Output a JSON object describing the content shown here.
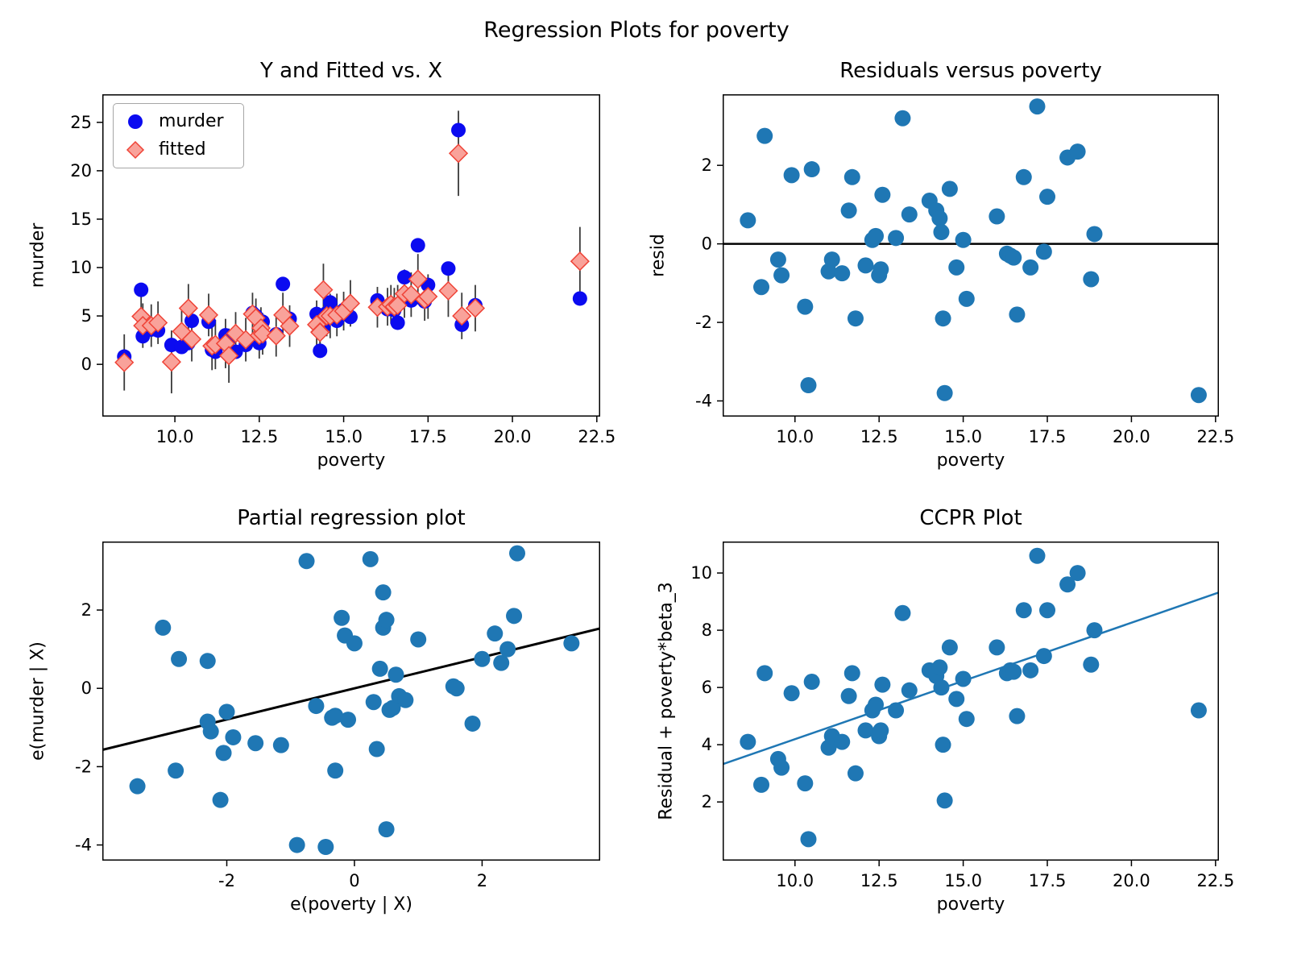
{
  "figure": {
    "suptitle": "Regression Plots for poverty",
    "background": "#ffffff"
  },
  "colors": {
    "murder_blue": "#0b0bf0",
    "fitted_fill": "#f9a29a",
    "fitted_edge": "#ef4337",
    "errorbar_gray": "#3a3a3a",
    "scatter_blue": "#1f77b4",
    "line_black": "#000000"
  },
  "chart_data": [
    {
      "id": "y_fitted_vs_x",
      "type": "scatter",
      "title": "Y and Fitted vs. X",
      "xlabel": "poverty",
      "ylabel": "murder",
      "xlim": [
        7.85,
        22.6
      ],
      "ylim": [
        -5.4,
        27.9
      ],
      "xticks": [
        10,
        12.5,
        15,
        17.5,
        20,
        22.5
      ],
      "xtick_labels": [
        "10.0",
        "12.5",
        "15.0",
        "17.5",
        "20.0",
        "22.5"
      ],
      "yticks": [
        0,
        5,
        10,
        15,
        20,
        25
      ],
      "ytick_labels": [
        "0",
        "5",
        "10",
        "15",
        "20",
        "25"
      ],
      "murder_color": "#0b0bf0",
      "fitted_fill": "#f9a29a",
      "fitted_edge": "#ef4337",
      "errorbar_color": "#3a3a3a",
      "legend": {
        "items": [
          {
            "label": "murder",
            "marker": "circle",
            "color": "#0b0bf0"
          },
          {
            "label": "fitted",
            "marker": "diamond",
            "fill": "#f9a29a",
            "edge": "#ef4337"
          }
        ]
      },
      "point_format": [
        "poverty",
        "murder",
        "fitted",
        "ci_low",
        "ci_high"
      ],
      "points": [
        [
          8.5,
          0.8,
          0.2,
          -2.7,
          3.1
        ],
        [
          9.0,
          7.7,
          4.95,
          2.4,
          7.5
        ],
        [
          9.05,
          2.9,
          4.0,
          1.7,
          6.3
        ],
        [
          9.3,
          3.6,
          4.0,
          1.8,
          6.2
        ],
        [
          9.5,
          3.5,
          4.3,
          2.1,
          6.5
        ],
        [
          9.9,
          2.0,
          0.25,
          -3.0,
          3.5
        ],
        [
          10.2,
          1.8,
          3.4,
          1.2,
          5.6
        ],
        [
          10.4,
          2.2,
          5.8,
          3.3,
          8.3
        ],
        [
          10.5,
          4.5,
          2.6,
          0.3,
          4.9
        ],
        [
          11.0,
          4.4,
          5.1,
          2.9,
          7.3
        ],
        [
          11.1,
          1.5,
          1.9,
          -0.6,
          4.4
        ],
        [
          11.2,
          1.3,
          2.05,
          -0.5,
          4.6
        ],
        [
          11.5,
          3.0,
          2.15,
          -0.4,
          4.7
        ],
        [
          11.6,
          2.6,
          0.9,
          -1.9,
          3.7
        ],
        [
          11.8,
          1.3,
          3.2,
          1.0,
          5.4
        ],
        [
          12.1,
          2.0,
          2.55,
          0.3,
          4.8
        ],
        [
          12.3,
          5.3,
          5.2,
          3.0,
          7.4
        ],
        [
          12.4,
          5.0,
          4.8,
          2.8,
          6.8
        ],
        [
          12.5,
          2.2,
          3.0,
          0.6,
          5.4
        ],
        [
          12.55,
          3.1,
          3.75,
          1.6,
          5.9
        ],
        [
          12.6,
          4.4,
          3.15,
          1.0,
          5.3
        ],
        [
          13.0,
          3.1,
          2.95,
          0.8,
          5.1
        ],
        [
          13.2,
          8.3,
          5.1,
          2.8,
          7.4
        ],
        [
          13.4,
          4.7,
          3.95,
          1.8,
          6.1
        ],
        [
          14.2,
          5.2,
          4.1,
          1.6,
          6.6
        ],
        [
          14.3,
          4.0,
          3.35,
          1.0,
          5.7
        ],
        [
          14.3,
          1.4,
          3.3,
          0.9,
          5.7
        ],
        [
          14.4,
          3.9,
          7.7,
          5.0,
          10.4
        ],
        [
          14.5,
          5.3,
          5.0,
          2.9,
          7.1
        ],
        [
          14.6,
          6.4,
          5.0,
          2.7,
          7.3
        ],
        [
          14.8,
          4.5,
          5.1,
          2.9,
          7.3
        ],
        [
          15.0,
          5.6,
          5.5,
          3.5,
          7.5
        ],
        [
          15.2,
          4.9,
          6.3,
          3.9,
          8.7
        ],
        [
          16.0,
          6.6,
          5.9,
          3.8,
          8.0
        ],
        [
          16.3,
          5.7,
          5.95,
          4.0,
          7.9
        ],
        [
          16.4,
          5.9,
          6.2,
          4.2,
          8.2
        ],
        [
          16.5,
          5.6,
          5.95,
          4.0,
          7.9
        ],
        [
          16.6,
          4.3,
          6.1,
          4.0,
          8.2
        ],
        [
          16.8,
          9.0,
          7.3,
          4.8,
          9.8
        ],
        [
          17.0,
          6.6,
          7.2,
          4.9,
          9.5
        ],
        [
          17.2,
          12.3,
          8.8,
          6.2,
          11.4
        ],
        [
          17.4,
          6.5,
          6.7,
          4.5,
          8.9
        ],
        [
          17.5,
          8.2,
          7.0,
          4.7,
          9.3
        ],
        [
          18.1,
          9.9,
          7.6,
          4.9,
          10.3
        ],
        [
          18.4,
          24.2,
          21.8,
          17.4,
          26.2
        ],
        [
          18.5,
          4.1,
          5.0,
          2.6,
          7.4
        ],
        [
          18.9,
          6.1,
          5.8,
          3.4,
          8.2
        ],
        [
          22.0,
          6.8,
          10.65,
          7.1,
          14.2
        ]
      ]
    },
    {
      "id": "residuals_vs_poverty",
      "type": "scatter",
      "title": "Residuals versus poverty",
      "xlabel": "poverty",
      "ylabel": "resid",
      "xlim": [
        7.85,
        22.6
      ],
      "ylim": [
        -4.4,
        3.81
      ],
      "xticks": [
        10,
        12.5,
        15,
        17.5,
        20,
        22.5
      ],
      "xtick_labels": [
        "10.0",
        "12.5",
        "15.0",
        "17.5",
        "20.0",
        "22.5"
      ],
      "yticks": [
        -4,
        -2,
        0,
        2
      ],
      "ytick_labels": [
        "-4",
        "-2",
        "0",
        "2"
      ],
      "point_color": "#1f77b4",
      "zero_line": 0,
      "point_format": [
        "poverty",
        "resid"
      ],
      "points": [
        [
          8.6,
          0.6
        ],
        [
          9.0,
          -1.1
        ],
        [
          9.1,
          2.75
        ],
        [
          9.5,
          -0.4
        ],
        [
          9.6,
          -0.8
        ],
        [
          9.9,
          1.75
        ],
        [
          10.3,
          -1.6
        ],
        [
          10.4,
          -3.6
        ],
        [
          10.5,
          1.9
        ],
        [
          11.0,
          -0.7
        ],
        [
          11.1,
          -0.4
        ],
        [
          11.4,
          -0.75
        ],
        [
          11.6,
          0.85
        ],
        [
          11.7,
          1.7
        ],
        [
          11.8,
          -1.9
        ],
        [
          12.1,
          -0.55
        ],
        [
          12.3,
          0.1
        ],
        [
          12.4,
          0.2
        ],
        [
          12.5,
          -0.8
        ],
        [
          12.55,
          -0.65
        ],
        [
          12.6,
          1.25
        ],
        [
          13.0,
          0.15
        ],
        [
          13.2,
          3.2
        ],
        [
          13.4,
          0.75
        ],
        [
          14.0,
          1.1
        ],
        [
          14.2,
          0.85
        ],
        [
          14.3,
          0.65
        ],
        [
          14.35,
          0.3
        ],
        [
          14.4,
          -1.9
        ],
        [
          14.45,
          -3.8
        ],
        [
          14.6,
          1.4
        ],
        [
          14.8,
          -0.6
        ],
        [
          15.0,
          0.1
        ],
        [
          15.1,
          -1.4
        ],
        [
          16.0,
          0.7
        ],
        [
          16.3,
          -0.25
        ],
        [
          16.4,
          -0.3
        ],
        [
          16.5,
          -0.35
        ],
        [
          16.6,
          -1.8
        ],
        [
          16.8,
          1.7
        ],
        [
          17.0,
          -0.6
        ],
        [
          17.2,
          3.5
        ],
        [
          17.4,
          -0.2
        ],
        [
          17.5,
          1.2
        ],
        [
          18.1,
          2.2
        ],
        [
          18.4,
          2.35
        ],
        [
          18.8,
          -0.9
        ],
        [
          18.9,
          0.25
        ],
        [
          22.0,
          -3.85
        ]
      ]
    },
    {
      "id": "partial_regression",
      "type": "scatter",
      "title": "Partial regression plot",
      "xlabel": "e(poverty | X)",
      "ylabel": "e(murder | X)",
      "xlim": [
        -3.95,
        3.85
      ],
      "ylim": [
        -4.4,
        3.75
      ],
      "xticks": [
        -2,
        0,
        2
      ],
      "xtick_labels": [
        "-2",
        "0",
        "2"
      ],
      "yticks": [
        -4,
        -2,
        0,
        2
      ],
      "ytick_labels": [
        "-4",
        "-2",
        "0",
        "2"
      ],
      "point_color": "#1f77b4",
      "fit_line": {
        "x1": -3.95,
        "y1": -1.57,
        "x2": 3.85,
        "y2": 1.53,
        "color": "#000000",
        "width": 3
      },
      "point_format": [
        "e_poverty",
        "e_murder"
      ],
      "points": [
        [
          -3.4,
          -2.5
        ],
        [
          -3.0,
          1.55
        ],
        [
          -2.8,
          -2.1
        ],
        [
          -2.75,
          0.75
        ],
        [
          -2.3,
          0.7
        ],
        [
          -2.3,
          -0.85
        ],
        [
          -2.25,
          -1.1
        ],
        [
          -2.1,
          -2.85
        ],
        [
          -2.05,
          -1.65
        ],
        [
          -2.0,
          -0.6
        ],
        [
          -1.9,
          -1.25
        ],
        [
          -1.55,
          -1.4
        ],
        [
          -1.15,
          -1.45
        ],
        [
          -0.9,
          -4.0
        ],
        [
          -0.75,
          3.25
        ],
        [
          -0.6,
          -0.45
        ],
        [
          -0.45,
          -4.05
        ],
        [
          -0.35,
          -0.75
        ],
        [
          -0.3,
          -2.1
        ],
        [
          -0.3,
          -0.7
        ],
        [
          -0.2,
          1.8
        ],
        [
          -0.15,
          1.35
        ],
        [
          -0.1,
          -0.8
        ],
        [
          0.0,
          1.15
        ],
        [
          0.25,
          3.3
        ],
        [
          0.3,
          -0.35
        ],
        [
          0.35,
          -1.55
        ],
        [
          0.4,
          0.5
        ],
        [
          0.45,
          2.45
        ],
        [
          0.45,
          1.55
        ],
        [
          0.5,
          1.75
        ],
        [
          0.5,
          -3.6
        ],
        [
          0.55,
          -0.55
        ],
        [
          0.6,
          -0.5
        ],
        [
          0.65,
          0.35
        ],
        [
          0.7,
          -0.2
        ],
        [
          0.8,
          -0.3
        ],
        [
          1.0,
          1.25
        ],
        [
          1.55,
          0.05
        ],
        [
          1.6,
          0.0
        ],
        [
          1.85,
          -0.9
        ],
        [
          2.0,
          0.75
        ],
        [
          2.2,
          1.4
        ],
        [
          2.3,
          0.65
        ],
        [
          2.4,
          1.0
        ],
        [
          2.5,
          1.85
        ],
        [
          2.55,
          3.45
        ],
        [
          3.4,
          1.15
        ]
      ]
    },
    {
      "id": "ccpr",
      "type": "scatter",
      "title": "CCPR Plot",
      "xlabel": "poverty",
      "ylabel": "Residual + poverty*beta_3",
      "xlim": [
        7.85,
        22.6
      ],
      "ylim": [
        -0.05,
        11.1
      ],
      "xticks": [
        10,
        12.5,
        15,
        17.5,
        20,
        22.5
      ],
      "xtick_labels": [
        "10.0",
        "12.5",
        "15.0",
        "17.5",
        "20.0",
        "22.5"
      ],
      "yticks": [
        2,
        4,
        6,
        8,
        10
      ],
      "ytick_labels": [
        "2",
        "4",
        "6",
        "8",
        "10"
      ],
      "point_color": "#1f77b4",
      "fit_line": {
        "x1": 7.85,
        "y1": 3.32,
        "x2": 22.6,
        "y2": 9.32,
        "color": "#1f77b4",
        "width": 2.5
      },
      "point_format": [
        "poverty",
        "residual_plus_component"
      ],
      "points": [
        [
          8.6,
          4.1
        ],
        [
          9.0,
          2.6
        ],
        [
          9.1,
          6.5
        ],
        [
          9.5,
          3.5
        ],
        [
          9.6,
          3.2
        ],
        [
          9.9,
          5.8
        ],
        [
          10.3,
          2.65
        ],
        [
          10.4,
          0.7
        ],
        [
          10.5,
          6.2
        ],
        [
          11.0,
          3.9
        ],
        [
          11.1,
          4.3
        ],
        [
          11.4,
          4.1
        ],
        [
          11.6,
          5.7
        ],
        [
          11.7,
          6.5
        ],
        [
          11.8,
          3.0
        ],
        [
          12.1,
          4.5
        ],
        [
          12.3,
          5.2
        ],
        [
          12.4,
          5.4
        ],
        [
          12.5,
          4.3
        ],
        [
          12.55,
          4.5
        ],
        [
          12.6,
          6.1
        ],
        [
          13.0,
          5.2
        ],
        [
          13.2,
          8.6
        ],
        [
          13.4,
          5.9
        ],
        [
          14.0,
          6.6
        ],
        [
          14.2,
          6.4
        ],
        [
          14.3,
          6.7
        ],
        [
          14.35,
          6.0
        ],
        [
          14.4,
          4.0
        ],
        [
          14.45,
          2.05
        ],
        [
          14.6,
          7.4
        ],
        [
          14.8,
          5.6
        ],
        [
          15.0,
          6.3
        ],
        [
          15.1,
          4.9
        ],
        [
          16.0,
          7.4
        ],
        [
          16.3,
          6.5
        ],
        [
          16.4,
          6.6
        ],
        [
          16.5,
          6.55
        ],
        [
          16.6,
          5.0
        ],
        [
          16.8,
          8.7
        ],
        [
          17.0,
          6.6
        ],
        [
          17.2,
          10.6
        ],
        [
          17.4,
          7.1
        ],
        [
          17.5,
          8.7
        ],
        [
          18.1,
          9.6
        ],
        [
          18.4,
          10.0
        ],
        [
          18.8,
          6.8
        ],
        [
          18.9,
          8.0
        ],
        [
          22.0,
          5.2
        ]
      ]
    }
  ]
}
